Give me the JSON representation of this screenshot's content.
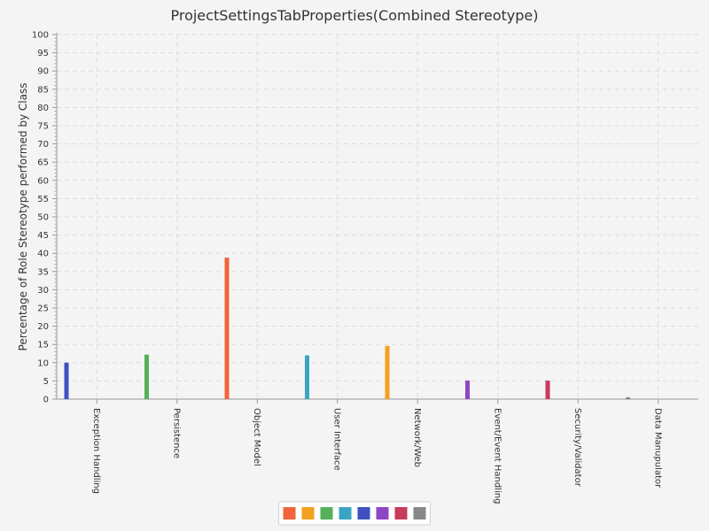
{
  "chart_data": {
    "type": "bar",
    "title": "ProjectSettingsTabProperties(Combined Stereotype)",
    "xlabel": "",
    "ylabel": "Percentage of Role Stereotype performed by Class",
    "ylim": [
      0,
      100
    ],
    "ytick_step": 5,
    "grid": true,
    "legend_position": "bottom",
    "categories": [
      "Exception Handling",
      "Persistence",
      "Object Model",
      "User Interface",
      "Network/Web",
      "Event/Event Handling",
      "Security/Validator",
      "Data Manupulator"
    ],
    "bar_colors": [
      "#3f51c0",
      "#55b05a",
      "#f0643a",
      "#3ba3c4",
      "#f2a11f",
      "#8f46c4",
      "#c73b5c",
      "#888888"
    ],
    "values": [
      10,
      12.2,
      38.8,
      12,
      14.6,
      5.1,
      5.1,
      0.5
    ],
    "legend_colors": [
      "#f0643a",
      "#f2a11f",
      "#55b05a",
      "#3ba3c4",
      "#3f51c0",
      "#8f46c4",
      "#c73b5c",
      "#888888"
    ]
  }
}
